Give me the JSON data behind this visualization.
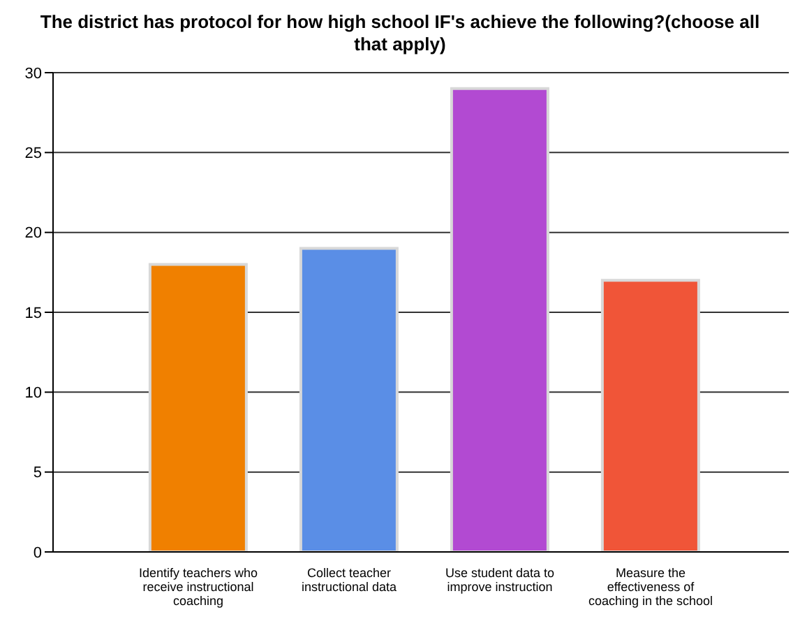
{
  "chart_data": {
    "type": "bar",
    "title": "The district has protocol for how high school IF's achieve the following?(choose all that apply)",
    "categories": [
      "Identify teachers who receive instructional coaching",
      "Collect teacher instructional data",
      "Use student data to improve instruction",
      "Measure the effectiveness of coaching in the school"
    ],
    "values": [
      18,
      19,
      29,
      17
    ],
    "colors": [
      "#f08000",
      "#5a8ee6",
      "#b24ad2",
      "#f05538"
    ],
    "ylim": [
      0,
      30
    ],
    "yticks": [
      0,
      5,
      10,
      15,
      20,
      25,
      30
    ],
    "grid": "y",
    "legend": false
  }
}
